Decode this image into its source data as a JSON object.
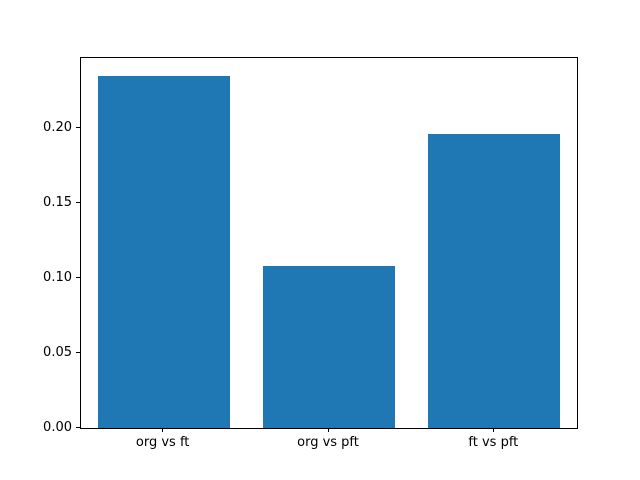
{
  "chart_data": {
    "type": "bar",
    "title": "",
    "xlabel": "",
    "ylabel": "",
    "categories": [
      "org vs ft",
      "org vs pft",
      "ft vs pft"
    ],
    "values": [
      0.235,
      0.108,
      0.196
    ],
    "yticks": [
      0.0,
      0.05,
      0.1,
      0.15,
      0.2
    ],
    "ytick_labels": [
      "0.00",
      "0.05",
      "0.10",
      "0.15",
      "0.20"
    ],
    "ylim": [
      0,
      0.2468
    ],
    "bar_color": "#1f77b4",
    "bar_width_fraction": 0.8,
    "grid": false,
    "legend": "none"
  }
}
